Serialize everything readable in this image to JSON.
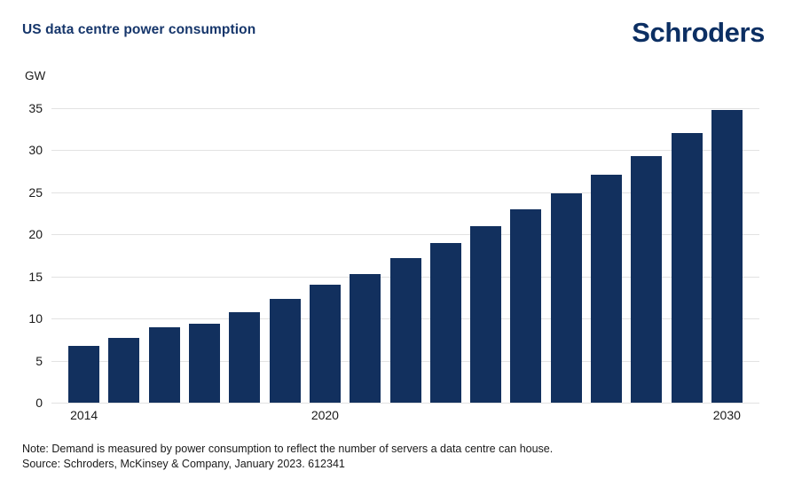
{
  "header": {
    "title": "US data centre power consumption",
    "logo_text": "Schroders"
  },
  "footer": {
    "note": "Note: Demand is measured by power consumption to reflect the number of servers a data centre can house.",
    "source": "Source: Schroders, McKinsey & Company, January 2023. 612341"
  },
  "chart_data": {
    "type": "bar",
    "title": "US data centre power consumption",
    "unit_label": "GW",
    "xlabel": "",
    "ylabel": "GW",
    "categories": [
      "2014",
      "2015",
      "2016",
      "2017",
      "2018",
      "2019",
      "2020",
      "2021",
      "2022",
      "2023",
      "2024",
      "2025",
      "2026",
      "2027",
      "2028",
      "2029",
      "2030"
    ],
    "values": [
      6.7,
      7.7,
      9.0,
      9.4,
      10.8,
      12.3,
      14.0,
      15.3,
      17.2,
      19.0,
      21.0,
      23.0,
      24.9,
      27.1,
      29.3,
      32.0,
      34.8
    ],
    "visible_x_ticks": [
      "2014",
      "2020",
      "2030"
    ],
    "y_ticks": [
      0,
      5,
      10,
      15,
      20,
      25,
      30,
      35
    ],
    "ylim": [
      0,
      35
    ],
    "grid": true,
    "legend": "none",
    "bar_color": "#12305e"
  },
  "colors": {
    "title_text": "#16366b",
    "logo_text": "#0c2f63",
    "axis_text": "#1a1a1a",
    "gridline": "#e2e2e2",
    "bar": "#12305e",
    "background": "#ffffff"
  }
}
